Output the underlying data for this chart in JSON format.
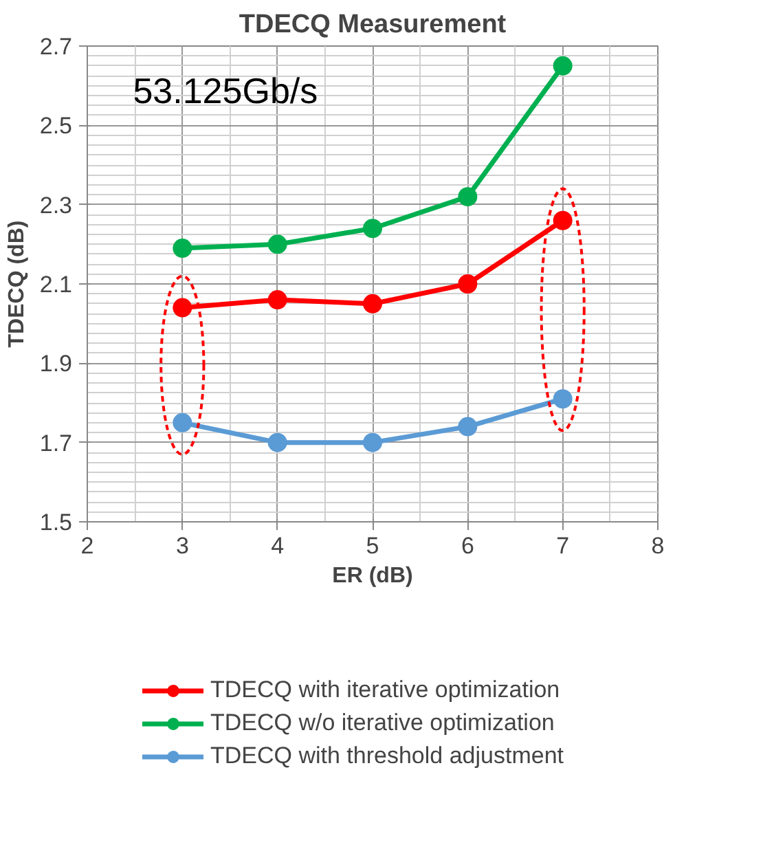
{
  "chart_data": {
    "type": "line",
    "title": "TDECQ Measurement",
    "xlabel": "ER (dB)",
    "ylabel": "TDECQ (dB)",
    "x": [
      3,
      4,
      5,
      6,
      7
    ],
    "series": [
      {
        "name": "TDECQ with iterative optimization",
        "color": "#ff0000",
        "values": [
          2.04,
          2.06,
          2.05,
          2.1,
          2.26
        ]
      },
      {
        "name": "TDECQ w/o iterative optimization",
        "color": "#00b050",
        "values": [
          2.19,
          2.2,
          2.24,
          2.32,
          2.65
        ]
      },
      {
        "name": "TDECQ with threshold adjustment",
        "color": "#5b9bd5",
        "values": [
          1.75,
          1.7,
          1.7,
          1.74,
          1.81
        ]
      }
    ],
    "xlim": [
      2,
      8
    ],
    "ylim": [
      1.5,
      2.7
    ],
    "xticks": [
      2,
      3,
      4,
      5,
      6,
      7,
      8
    ],
    "yticks": [
      1.5,
      1.7,
      1.9,
      2.1,
      2.3,
      2.5,
      2.7
    ],
    "annotations": [
      "53.125Gb/s"
    ],
    "grid": true,
    "legend": "bottom",
    "marker": "circle",
    "line_style": "solid"
  }
}
